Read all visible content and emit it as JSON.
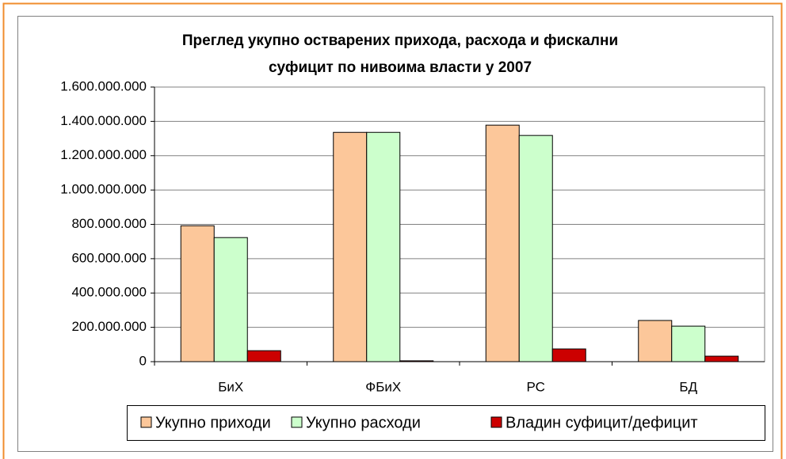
{
  "chart_data": {
    "type": "bar",
    "title": [
      "Преглед укупно остварених прихода, расхода и фискални",
      "суфицит по нивоима власти у 2007"
    ],
    "categories": [
      "БиХ",
      "ФБиХ",
      "РС",
      "БД"
    ],
    "series": [
      {
        "name": "Укупно приходи",
        "color": "#fcc79a",
        "values": [
          792000000,
          1336000000,
          1378000000,
          240000000
        ]
      },
      {
        "name": "Укупно расходи",
        "color": "#ccffcc",
        "values": [
          723000000,
          1336000000,
          1318000000,
          207000000
        ]
      },
      {
        "name": "Владин суфицит/дефицит",
        "color": "#cc0000",
        "values": [
          64000000,
          5000000,
          74000000,
          32000000
        ]
      }
    ],
    "ylim": [
      0,
      1600000000
    ],
    "yticks": [
      0,
      {
        "value": 200000000,
        "label": "200.000.000"
      },
      {
        "value": 400000000,
        "label": "400.000.000"
      },
      {
        "value": 600000000,
        "label": "600.000.000"
      },
      {
        "value": 800000000,
        "label": "800.000.000"
      },
      {
        "value": 1000000000,
        "label": "1.000.000.000"
      },
      {
        "value": 1200000000,
        "label": "1.200.000.000"
      },
      {
        "value": 1400000000,
        "label": "1.400.000.000"
      },
      {
        "value": 1600000000,
        "label": "1.600.000.000"
      }
    ],
    "grid": true,
    "legend": "bottom"
  }
}
